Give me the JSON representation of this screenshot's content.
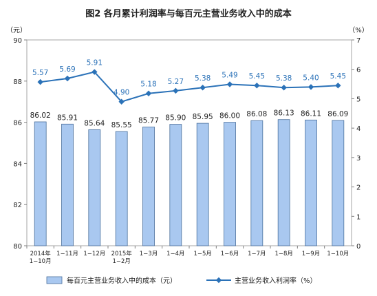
{
  "chart_data": {
    "type": "bar",
    "title": "图2  各月累计利润率与每百元主营业务收入中的成本",
    "left_unit": "（元）",
    "right_unit": "（%）",
    "categories": [
      [
        "2014年",
        "1−10月"
      ],
      [
        "1−11月"
      ],
      [
        "1−12月"
      ],
      [
        "2015年",
        "1−2月"
      ],
      [
        "1−3月"
      ],
      [
        "1−4月"
      ],
      [
        "1−5月"
      ],
      [
        "1−6月"
      ],
      [
        "1−7月"
      ],
      [
        "1−8月"
      ],
      [
        "1−9月"
      ],
      [
        "1−10月"
      ]
    ],
    "ylim_left": [
      80,
      90
    ],
    "yticks_left": [
      80,
      82,
      84,
      86,
      88,
      90
    ],
    "ylim_right": [
      0,
      7
    ],
    "yticks_right": [
      0,
      1,
      2,
      3,
      4,
      5,
      6,
      7
    ],
    "series": [
      {
        "name": "每百元主营业务收入中的成本（元）",
        "type": "bar",
        "axis": "left",
        "values": [
          86.02,
          85.91,
          85.64,
          85.55,
          85.77,
          85.9,
          85.95,
          86.0,
          86.08,
          86.13,
          86.11,
          86.09
        ],
        "labels": [
          "86.02",
          "85.91",
          "85.64",
          "85.55",
          "85.77",
          "85.90",
          "85.95",
          "86.00",
          "86.08",
          "86.13",
          "86.11",
          "86.09"
        ],
        "color": "#a9c8f0",
        "border": "#4a6f9c"
      },
      {
        "name": "主营业务收入利润率（%）",
        "type": "line",
        "axis": "right",
        "values": [
          5.57,
          5.69,
          5.91,
          4.9,
          5.18,
          5.27,
          5.38,
          5.49,
          5.45,
          5.38,
          5.4,
          5.45
        ],
        "labels": [
          "5.57",
          "5.69",
          "5.91",
          "4.90",
          "5.18",
          "5.27",
          "5.38",
          "5.49",
          "5.45",
          "5.38",
          "5.40",
          "5.45"
        ],
        "color": "#2b72b8"
      }
    ],
    "legend": "bottom",
    "grid": false
  },
  "colors": {
    "label_blue": "#2b72b8",
    "axis": "#7f7f7f",
    "text": "#222222"
  }
}
